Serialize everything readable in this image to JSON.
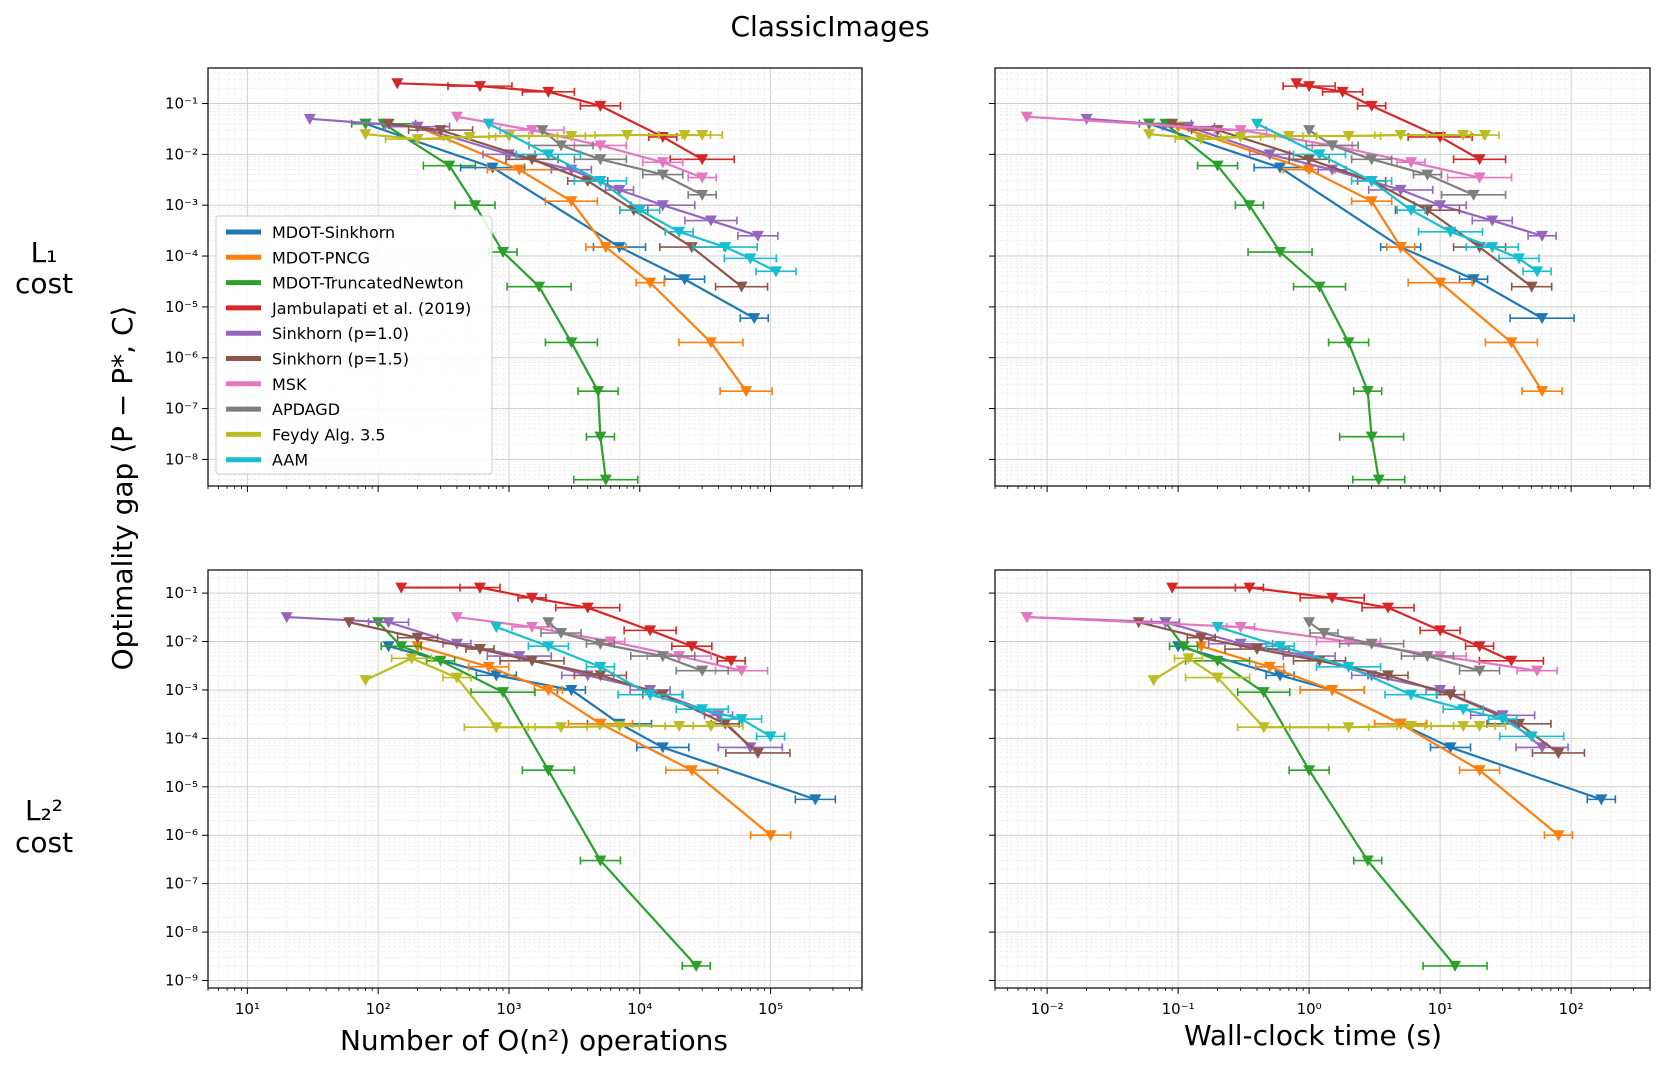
{
  "figure": {
    "title": "ClassicImages",
    "ylabel": "Optimality gap ⟨P − P*, C⟩",
    "xlabel_left": "Number of O(n²) operations",
    "xlabel_right": "Wall-clock time (s)",
    "row_label_top": [
      "L₁",
      "cost"
    ],
    "row_label_bottom": [
      "L₂²",
      "cost"
    ]
  },
  "legend": [
    {
      "name": "MDOT-Sinkhorn",
      "color": "#1f77b4"
    },
    {
      "name": "MDOT-PNCG",
      "color": "#ff7f0e"
    },
    {
      "name": "MDOT-TruncatedNewton",
      "color": "#2ca02c"
    },
    {
      "name": "Jambulapati et al. (2019)",
      "color": "#d62728"
    },
    {
      "name": "Sinkhorn (p=1.0)",
      "color": "#9467bd"
    },
    {
      "name": "Sinkhorn (p=1.5)",
      "color": "#8c564b"
    },
    {
      "name": "MSK",
      "color": "#e377c2"
    },
    {
      "name": "APDAGD",
      "color": "#7f7f7f"
    },
    {
      "name": "Feydy Alg. 3.5",
      "color": "#bcbd22"
    },
    {
      "name": "AAM",
      "color": "#17becf"
    }
  ],
  "chart_data": [
    {
      "type": "line",
      "panel": "L1 cost, operations",
      "xscale": "log",
      "yscale": "log",
      "xlim": [
        5,
        500000
      ],
      "ylim": [
        3e-09,
        0.5
      ],
      "series": [
        {
          "name": "MDOT-Sinkhorn",
          "x": [
            80,
            750,
            7000,
            22000,
            75000
          ],
          "y": [
            0.04,
            0.0055,
            0.00015,
            3.5e-05,
            6e-06
          ]
        },
        {
          "name": "MDOT-PNCG",
          "x": [
            200,
            1200,
            3000,
            5500,
            12000,
            35000,
            65000
          ],
          "y": [
            0.035,
            0.005,
            0.0012,
            0.00015,
            3e-05,
            2e-06,
            2.2e-07
          ]
        },
        {
          "name": "MDOT-TruncatedNewton",
          "x": [
            80,
            110,
            350,
            550,
            900,
            1700,
            3000,
            4800,
            5000,
            5500
          ],
          "y": [
            0.04,
            0.04,
            0.006,
            0.001,
            0.00012,
            2.5e-05,
            2e-06,
            2.2e-07,
            2.8e-08,
            4e-09
          ]
        },
        {
          "name": "Jambulapati et al. (2019)",
          "x": [
            140,
            600,
            2000,
            5000,
            15000,
            30000
          ],
          "y": [
            0.25,
            0.22,
            0.17,
            0.09,
            0.022,
            0.008
          ]
        },
        {
          "name": "Sinkhorn (p=1.0)",
          "x": [
            30,
            200,
            1000,
            3000,
            7000,
            15000,
            35000,
            80000
          ],
          "y": [
            0.05,
            0.035,
            0.01,
            0.005,
            0.002,
            0.001,
            0.0005,
            0.00025
          ]
        },
        {
          "name": "Sinkhorn (p=1.5)",
          "x": [
            120,
            300,
            1500,
            4000,
            9000,
            25000,
            60000
          ],
          "y": [
            0.04,
            0.03,
            0.008,
            0.003,
            0.0008,
            0.00015,
            2.5e-05
          ]
        },
        {
          "name": "MSK",
          "x": [
            400,
            1500,
            5000,
            15000,
            30000
          ],
          "y": [
            0.055,
            0.03,
            0.015,
            0.007,
            0.0035
          ]
        },
        {
          "name": "APDAGD",
          "x": [
            1800,
            2500,
            5000,
            15000,
            30000
          ],
          "y": [
            0.03,
            0.015,
            0.008,
            0.004,
            0.0016
          ]
        },
        {
          "name": "Feydy Alg. 3.5",
          "x": [
            80,
            200,
            500,
            1000,
            3000,
            8000,
            22000,
            30000
          ],
          "y": [
            0.025,
            0.02,
            0.022,
            0.023,
            0.023,
            0.024,
            0.024,
            0.024
          ]
        },
        {
          "name": "AAM",
          "x": [
            700,
            2000,
            5000,
            10000,
            20000,
            45000,
            70000,
            110000
          ],
          "y": [
            0.04,
            0.01,
            0.003,
            0.0008,
            0.0003,
            0.00015,
            9e-05,
            5e-05
          ]
        }
      ]
    },
    {
      "type": "line",
      "panel": "L1 cost, wall-clock time",
      "xscale": "log",
      "yscale": "log",
      "xlim": [
        0.004,
        400
      ],
      "ylim": [
        3e-09,
        0.5
      ],
      "series": [
        {
          "name": "MDOT-Sinkhorn",
          "x": [
            0.06,
            0.6,
            5,
            18,
            60
          ],
          "y": [
            0.04,
            0.0055,
            0.00015,
            3.5e-05,
            6e-06
          ]
        },
        {
          "name": "MDOT-PNCG",
          "x": [
            0.1,
            1,
            3,
            5,
            10,
            35,
            60
          ],
          "y": [
            0.035,
            0.005,
            0.0012,
            0.00015,
            3e-05,
            2e-06,
            2.2e-07
          ]
        },
        {
          "name": "MDOT-TruncatedNewton",
          "x": [
            0.06,
            0.08,
            0.2,
            0.35,
            0.6,
            1.2,
            2,
            2.8,
            3,
            3.4
          ],
          "y": [
            0.04,
            0.04,
            0.006,
            0.001,
            0.00012,
            2.5e-05,
            2e-06,
            2.2e-07,
            2.8e-08,
            4e-09
          ]
        },
        {
          "name": "Jambulapati et al. (2019)",
          "x": [
            0.8,
            1,
            1.8,
            3,
            10,
            20
          ],
          "y": [
            0.25,
            0.22,
            0.17,
            0.09,
            0.022,
            0.008
          ]
        },
        {
          "name": "Sinkhorn (p=1.0)",
          "x": [
            0.02,
            0.12,
            0.5,
            1.5,
            5,
            10,
            25,
            60
          ],
          "y": [
            0.05,
            0.035,
            0.01,
            0.005,
            0.002,
            0.001,
            0.0005,
            0.00025
          ]
        },
        {
          "name": "Sinkhorn (p=1.5)",
          "x": [
            0.09,
            0.2,
            1,
            3,
            8,
            20,
            50
          ],
          "y": [
            0.04,
            0.03,
            0.008,
            0.003,
            0.0008,
            0.00015,
            2.5e-05
          ]
        },
        {
          "name": "MSK",
          "x": [
            0.007,
            0.3,
            1.5,
            6,
            20
          ],
          "y": [
            0.055,
            0.03,
            0.015,
            0.007,
            0.0035
          ]
        },
        {
          "name": "APDAGD",
          "x": [
            1,
            1.5,
            3,
            8,
            18
          ],
          "y": [
            0.03,
            0.015,
            0.008,
            0.004,
            0.0016
          ]
        },
        {
          "name": "Feydy Alg. 3.5",
          "x": [
            0.06,
            0.15,
            0.3,
            0.7,
            2,
            5,
            15,
            22
          ],
          "y": [
            0.025,
            0.02,
            0.022,
            0.023,
            0.023,
            0.024,
            0.024,
            0.024
          ]
        },
        {
          "name": "AAM",
          "x": [
            0.4,
            1.2,
            3,
            6,
            12,
            25,
            40,
            55
          ],
          "y": [
            0.04,
            0.01,
            0.003,
            0.0008,
            0.0003,
            0.00015,
            9e-05,
            5e-05
          ]
        }
      ]
    },
    {
      "type": "line",
      "panel": "L2^2 cost, operations",
      "xscale": "log",
      "yscale": "log",
      "xlim": [
        5,
        500000
      ],
      "ylim": [
        7e-10,
        0.3
      ],
      "series": [
        {
          "name": "MDOT-Sinkhorn",
          "x": [
            120,
            800,
            3000,
            7000,
            15000,
            220000
          ],
          "y": [
            0.008,
            0.002,
            0.001,
            0.0002,
            6.5e-05,
            5.5e-06
          ]
        },
        {
          "name": "MDOT-PNCG",
          "x": [
            200,
            700,
            2000,
            5000,
            25000,
            100000
          ],
          "y": [
            0.008,
            0.003,
            0.001,
            0.0002,
            2.2e-05,
            1e-06
          ]
        },
        {
          "name": "MDOT-TruncatedNewton",
          "x": [
            100,
            150,
            300,
            900,
            2000,
            5000,
            27000
          ],
          "y": [
            0.025,
            0.008,
            0.004,
            0.0009,
            2.2e-05,
            3e-07,
            2e-09
          ]
        },
        {
          "name": "Jambulapati et al. (2019)",
          "x": [
            150,
            600,
            1500,
            4000,
            12000,
            25000,
            50000
          ],
          "y": [
            0.13,
            0.13,
            0.08,
            0.05,
            0.017,
            0.008,
            0.004
          ]
        },
        {
          "name": "Sinkhorn (p=1.0)",
          "x": [
            20,
            120,
            400,
            1200,
            4000,
            12000,
            40000,
            70000
          ],
          "y": [
            0.032,
            0.025,
            0.009,
            0.005,
            0.002,
            0.001,
            0.0003,
            6.5e-05
          ]
        },
        {
          "name": "Sinkhorn (p=1.5)",
          "x": [
            60,
            200,
            600,
            1500,
            5000,
            15000,
            45000,
            80000
          ],
          "y": [
            0.025,
            0.012,
            0.007,
            0.004,
            0.002,
            0.0008,
            0.0002,
            5e-05
          ]
        },
        {
          "name": "MSK",
          "x": [
            400,
            1500,
            6000,
            20000,
            60000
          ],
          "y": [
            0.032,
            0.02,
            0.01,
            0.005,
            0.0025
          ]
        },
        {
          "name": "APDAGD",
          "x": [
            2000,
            2500,
            5000,
            15000,
            30000
          ],
          "y": [
            0.025,
            0.015,
            0.009,
            0.005,
            0.0025
          ]
        },
        {
          "name": "Feydy Alg. 3.5",
          "x": [
            80,
            180,
            400,
            800,
            2500,
            7000,
            20000,
            35000
          ],
          "y": [
            0.0016,
            0.0045,
            0.0018,
            0.00017,
            0.00017,
            0.00018,
            0.00018,
            0.00018
          ]
        },
        {
          "name": "AAM",
          "x": [
            800,
            2000,
            5000,
            12000,
            30000,
            60000,
            100000
          ],
          "y": [
            0.02,
            0.008,
            0.003,
            0.0008,
            0.0004,
            0.00025,
            0.00011
          ]
        }
      ]
    },
    {
      "type": "line",
      "panel": "L2^2 cost, wall-clock time",
      "xscale": "log",
      "yscale": "log",
      "xlim": [
        0.004,
        400
      ],
      "ylim": [
        7e-10,
        0.3
      ],
      "series": [
        {
          "name": "MDOT-Sinkhorn",
          "x": [
            0.1,
            0.6,
            1.5,
            5,
            12,
            170
          ],
          "y": [
            0.008,
            0.002,
            0.001,
            0.0002,
            6.5e-05,
            5.5e-06
          ]
        },
        {
          "name": "MDOT-PNCG",
          "x": [
            0.15,
            0.5,
            1.5,
            5,
            20,
            80
          ],
          "y": [
            0.008,
            0.003,
            0.001,
            0.0002,
            2.2e-05,
            1e-06
          ]
        },
        {
          "name": "MDOT-TruncatedNewton",
          "x": [
            0.08,
            0.11,
            0.2,
            0.45,
            1,
            2.8,
            13
          ],
          "y": [
            0.025,
            0.008,
            0.004,
            0.0009,
            2.2e-05,
            3e-07,
            2e-09
          ]
        },
        {
          "name": "Jambulapati et al. (2019)",
          "x": [
            0.09,
            0.35,
            1.5,
            4,
            10,
            20,
            35
          ],
          "y": [
            0.13,
            0.13,
            0.08,
            0.05,
            0.017,
            0.008,
            0.004
          ]
        },
        {
          "name": "Sinkhorn (p=1.0)",
          "x": [
            0.007,
            0.08,
            0.3,
            1,
            3,
            10,
            30,
            60
          ],
          "y": [
            0.032,
            0.025,
            0.009,
            0.005,
            0.002,
            0.001,
            0.0003,
            6.5e-05
          ]
        },
        {
          "name": "Sinkhorn (p=1.5)",
          "x": [
            0.05,
            0.15,
            0.4,
            1.2,
            4,
            12,
            40,
            80
          ],
          "y": [
            0.025,
            0.012,
            0.007,
            0.004,
            0.002,
            0.0008,
            0.0002,
            5e-05
          ]
        },
        {
          "name": "MSK",
          "x": [
            0.007,
            0.3,
            2,
            10,
            55
          ],
          "y": [
            0.032,
            0.02,
            0.01,
            0.005,
            0.0025
          ]
        },
        {
          "name": "APDAGD",
          "x": [
            1,
            1.3,
            3,
            8,
            20
          ],
          "y": [
            0.025,
            0.015,
            0.009,
            0.005,
            0.0025
          ]
        },
        {
          "name": "Feydy Alg. 3.5",
          "x": [
            0.065,
            0.12,
            0.2,
            0.45,
            2,
            6,
            15,
            20
          ],
          "y": [
            0.0016,
            0.0045,
            0.0018,
            0.00017,
            0.00017,
            0.00018,
            0.00018,
            0.00018
          ]
        },
        {
          "name": "AAM",
          "x": [
            0.2,
            0.6,
            2,
            6,
            15,
            30,
            50
          ],
          "y": [
            0.02,
            0.008,
            0.003,
            0.0008,
            0.0004,
            0.00025,
            0.00011
          ]
        }
      ]
    }
  ]
}
